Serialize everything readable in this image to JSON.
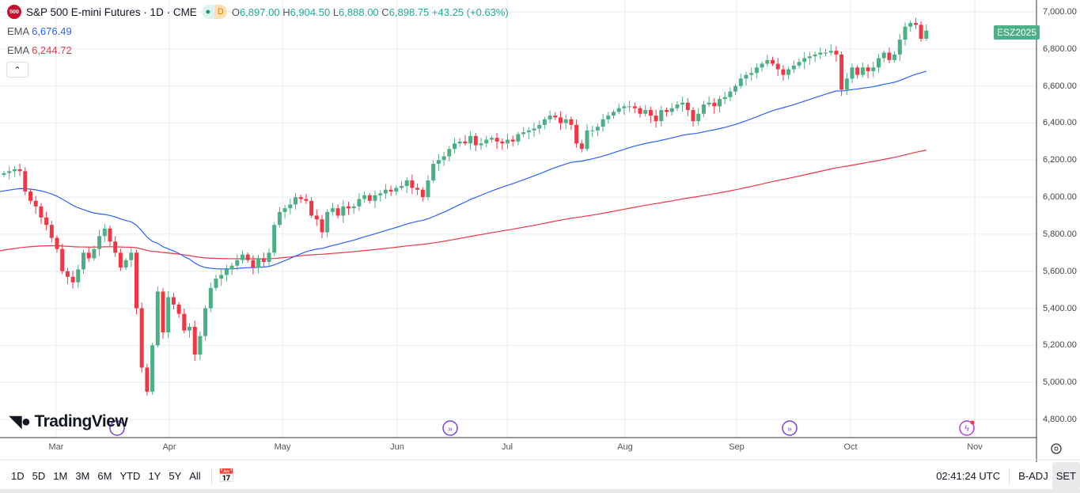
{
  "header": {
    "symbol_badge": "500",
    "title": "S&P 500 E-mini Futures · 1D · CME",
    "pill_dot": "●",
    "pill_d": "D",
    "open_label": "O",
    "open": "6,897.00",
    "high_label": "H",
    "high": "6,904.50",
    "low_label": "L",
    "low": "6,888.00",
    "close_label": "C",
    "close": "6,898.75",
    "change": "+43.25 (+0.63%)"
  },
  "indicators": [
    {
      "label": "EMA",
      "value": "6,676.49",
      "color": "#2962ff"
    },
    {
      "label": "EMA",
      "value": "6,244.72",
      "color": "#f23645"
    }
  ],
  "collapse_icon": "chevron-up",
  "contract_tag": "ESZ2025",
  "logo": "TradingView",
  "price_axis": [
    "7,000.00",
    "6,800.00",
    "6,600.00",
    "6,400.00",
    "6,200.00",
    "6,000.00",
    "5,800.00",
    "5,600.00",
    "5,400.00",
    "5,200.00",
    "5,000.00",
    "4,800.00"
  ],
  "time_axis": [
    "Mar",
    "Apr",
    "May",
    "Jun",
    "Jul",
    "Aug",
    "Sep",
    "Oct",
    "Nov"
  ],
  "toolbar": {
    "ranges": [
      "1D",
      "5D",
      "1M",
      "3M",
      "6M",
      "YTD",
      "1Y",
      "5Y",
      "All"
    ],
    "time": "02:41:24 UTC",
    "badj": "B-ADJ",
    "set": "SET"
  },
  "colors": {
    "up": "#4caf85",
    "down": "#f23645",
    "ema_fast": "#2962ff",
    "ema_slow": "#f23645",
    "grid": "#e6eef5"
  },
  "chart_data": {
    "type": "candlestick",
    "ylim": [
      4750,
      7050
    ],
    "ema_seeds": [
      6030,
      5710
    ],
    "ema_periods": [
      50,
      200
    ],
    "closes": [
      6130,
      6140,
      6150,
      6140,
      6030,
      5980,
      5950,
      5890,
      5850,
      5780,
      5720,
      5600,
      5570,
      5540,
      5610,
      5700,
      5670,
      5720,
      5790,
      5830,
      5760,
      5700,
      5620,
      5660,
      5700,
      5400,
      5080,
      4950,
      5200,
      5490,
      5270,
      5460,
      5420,
      5370,
      5280,
      5300,
      5150,
      5250,
      5400,
      5510,
      5560,
      5580,
      5610,
      5630,
      5660,
      5690,
      5660,
      5620,
      5670,
      5650,
      5700,
      5850,
      5920,
      5940,
      5960,
      6000,
      5990,
      5980,
      5900,
      5880,
      5810,
      5920,
      5940,
      5900,
      5950,
      5940,
      5950,
      5990,
      6010,
      5980,
      6010,
      6020,
      6040,
      6030,
      6050,
      6060,
      6090,
      6050,
      6040,
      6000,
      6090,
      6180,
      6200,
      6220,
      6260,
      6290,
      6300,
      6290,
      6330,
      6280,
      6290,
      6310,
      6320,
      6300,
      6290,
      6310,
      6300,
      6340,
      6350,
      6360,
      6370,
      6390,
      6420,
      6440,
      6430,
      6400,
      6420,
      6390,
      6290,
      6260,
      6360,
      6360,
      6380,
      6420,
      6440,
      6460,
      6480,
      6490,
      6490,
      6480,
      6450,
      6470,
      6440,
      6410,
      6470,
      6460,
      6480,
      6500,
      6510,
      6470,
      6410,
      6450,
      6500,
      6510,
      6490,
      6530,
      6540,
      6570,
      6600,
      6640,
      6660,
      6670,
      6700,
      6720,
      6740,
      6720,
      6690,
      6660,
      6690,
      6710,
      6730,
      6750,
      6760,
      6770,
      6780,
      6780,
      6790,
      6770,
      6580,
      6640,
      6700,
      6660,
      6700,
      6680,
      6700,
      6750,
      6780,
      6740,
      6770,
      6850,
      6920,
      6940,
      6930,
      6855,
      6898.75
    ]
  }
}
